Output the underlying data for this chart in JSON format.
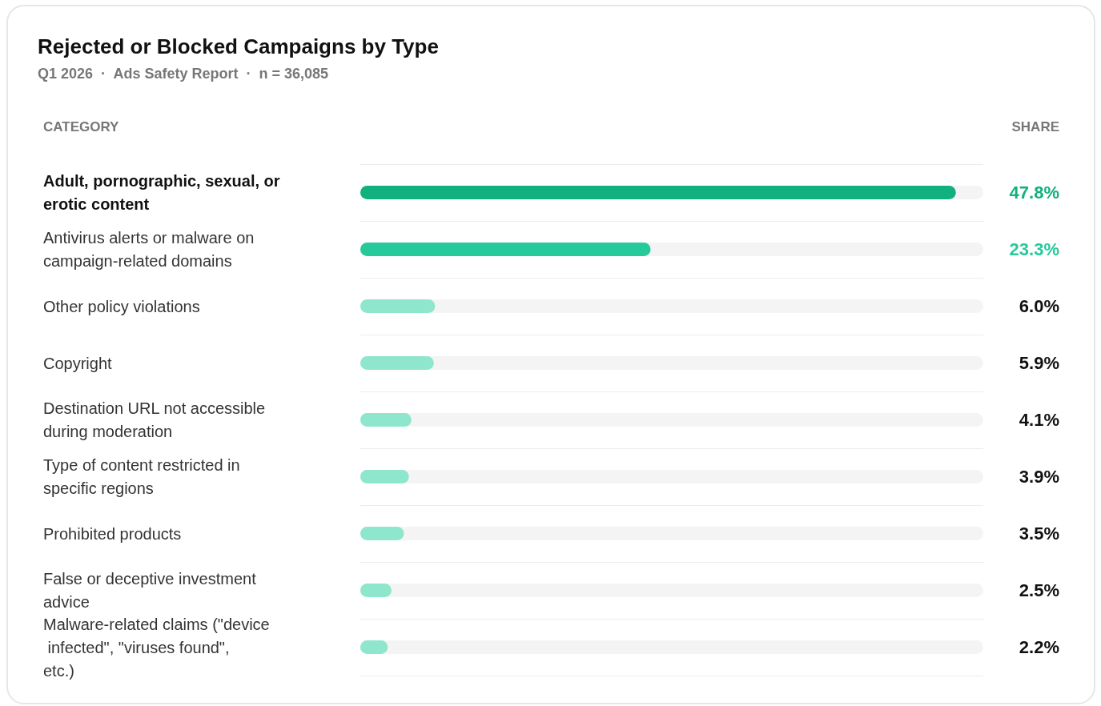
{
  "chart_data": {
    "type": "bar",
    "orientation": "horizontal",
    "title": "Rejected or Blocked Campaigns by Type",
    "subtitle": "Q1 2026  ·  Ads Safety Report  ·  n = 36,085",
    "ylabel": "CATEGORY",
    "xlabel": "SHARE",
    "categories": [
      "Adult, pornographic, sexual, or erotic content",
      "Antivirus alerts or malware on campaign-related domains",
      "Other policy violations",
      "Copyright",
      "Destination URL not accessible during moderation",
      "Type of content restricted in specific regions",
      "Prohibited products",
      "False or deceptive investment advice",
      "Malware-related claims (\"device infected\", \"viruses found\", etc.)"
    ],
    "values": [
      47.8,
      23.3,
      6.0,
      5.9,
      4.1,
      3.9,
      3.5,
      2.5,
      2.2
    ],
    "value_labels": [
      "47.8%",
      "23.3%",
      "6.0%",
      "5.9%",
      "4.1%",
      "3.9%",
      "3.5%",
      "2.5%",
      "2.2%"
    ],
    "colors": [
      "#12b07f",
      "#26c99a",
      "#8ee6cc",
      "#8ee6cc",
      "#8ee6cc",
      "#8ee6cc",
      "#8ee6cc",
      "#8ee6cc",
      "#8ee6cc"
    ],
    "xlim": [
      0,
      50
    ],
    "tick_labels": "y",
    "grid": "y",
    "legend": false
  }
}
